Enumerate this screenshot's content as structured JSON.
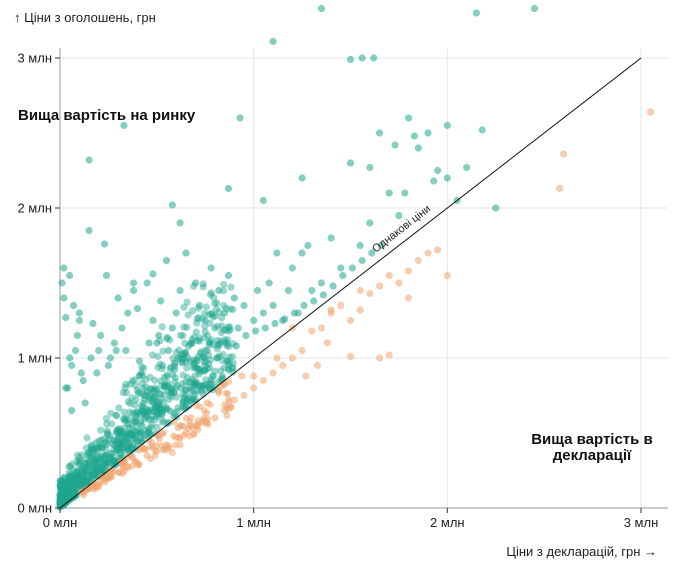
{
  "chart_data": {
    "type": "scatter",
    "xlabel": "Ціни з декларацій, грн →",
    "ylabel": "↑ Ціни з оголошень, грн",
    "xlim": [
      0,
      3000000
    ],
    "ylim": [
      0,
      3000000
    ],
    "xticks": [
      "0 млн",
      "1 млн",
      "2 млн",
      "3 млн"
    ],
    "yticks": [
      "0 млн",
      "1 млн",
      "2 млн",
      "3 млн"
    ],
    "grid": true,
    "diagonal_label": "Однакові ціни",
    "annotation_top": "Вища вартість на ринку",
    "annotation_bottom": [
      "Вища вартість в",
      "декларації"
    ],
    "colors": {
      "market_higher": "#1fa68f",
      "declaration_higher": "#f0a46f"
    },
    "series": [
      {
        "name": "Вища вартість на ринку",
        "note": "Representative subset of the dense point cloud",
        "x": [
          20000,
          30000,
          50000,
          40000,
          60000,
          70000,
          90000,
          100000,
          110000,
          130000,
          150000,
          170000,
          200000,
          230000,
          250000,
          280000,
          300000,
          320000,
          350000,
          380000,
          400000,
          420000,
          450000,
          480000,
          500000,
          520000,
          550000,
          580000,
          600000,
          620000,
          650000,
          680000,
          700000,
          720000,
          750000,
          780000,
          800000,
          820000,
          850000,
          870000,
          900000,
          920000,
          950000,
          1000000,
          1020000,
          1050000,
          1080000,
          1100000,
          1120000,
          1150000,
          1180000,
          1200000,
          1230000,
          1250000,
          1280000,
          1300000,
          1350000,
          1400000,
          1450000,
          1500000,
          1550000,
          1600000,
          1700000,
          1750000,
          1800000,
          1850000,
          1900000,
          1950000,
          2000000,
          2100000,
          2180000,
          2000000,
          1500000,
          1560000,
          1620000,
          1350000,
          1100000,
          930000,
          330000,
          150000,
          2150000,
          2450000,
          2250000,
          1650000,
          1730000,
          1780000,
          1830000,
          1930000,
          2050000,
          1600000,
          1250000,
          1050000,
          870000,
          620000,
          580000,
          480000,
          380000,
          240000,
          100000,
          50000,
          20000,
          10000,
          30000,
          60000,
          80000,
          120000,
          160000,
          190000,
          210000,
          260000,
          290000,
          340000,
          410000,
          460000,
          510000,
          560000,
          610000,
          660000,
          710000,
          760000,
          810000,
          860000,
          910000,
          960000,
          1010000,
          1060000,
          1110000,
          1160000,
          1210000,
          1260000,
          1310000,
          1360000,
          1410000,
          1460000,
          1510000,
          1560000,
          1610000,
          1660000
        ],
        "y": [
          1400000,
          1270000,
          1000000,
          800000,
          650000,
          1350000,
          1150000,
          1250000,
          900000,
          700000,
          2320000,
          1230000,
          1050000,
          1760000,
          950000,
          1100000,
          1400000,
          1200000,
          1300000,
          1450000,
          1330000,
          900000,
          1500000,
          1250000,
          1100000,
          1380000,
          1650000,
          1200000,
          1300000,
          1450000,
          1700000,
          1100000,
          1500000,
          1350000,
          1250000,
          1600000,
          1200000,
          1450000,
          1300000,
          1550000,
          1400000,
          1200000,
          1350000,
          1250000,
          1450000,
          1300000,
          1500000,
          1350000,
          1700000,
          1250000,
          1450000,
          1600000,
          1300000,
          1700000,
          1750000,
          1450000,
          1500000,
          1800000,
          1600000,
          2300000,
          1750000,
          1900000,
          2100000,
          1950000,
          2600000,
          2400000,
          2500000,
          2250000,
          2200000,
          2270000,
          2520000,
          2550000,
          2990000,
          3000000,
          3000000,
          3330000,
          3110000,
          2600000,
          2550000,
          1850000,
          3300000,
          3330000,
          2000000,
          2500000,
          2420000,
          2100000,
          2480000,
          2180000,
          2050000,
          2270000,
          2200000,
          2050000,
          2130000,
          1900000,
          2020000,
          1560000,
          1500000,
          1550000,
          1300000,
          1550000,
          1600000,
          1500000,
          800000,
          950000,
          1050000,
          850000,
          1000000,
          900000,
          1150000,
          1000000,
          1050000,
          1050000,
          980000,
          1100000,
          1150000,
          1050000,
          1000000,
          1000000,
          980000,
          1050000,
          1000000,
          1100000,
          1080000,
          1150000,
          1180000,
          1200000,
          1230000,
          1260000,
          1300000,
          1350000,
          1380000,
          1420000,
          1480000,
          1550000,
          1600000,
          1650000,
          1700000,
          1750000
        ]
      },
      {
        "name": "Вища вартість в декларації",
        "x": [
          2600000,
          2580000,
          3050000,
          2000000,
          1950000,
          1900000,
          1850000,
          1800000,
          1750000,
          1700000,
          1650000,
          1600000,
          1550000,
          1500000,
          1450000,
          1400000,
          1350000,
          1300000,
          1250000,
          1200000,
          1150000,
          1100000,
          1050000,
          1000000,
          950000,
          900000,
          850000,
          800000,
          750000,
          700000,
          650000,
          600000,
          550000,
          500000,
          450000,
          400000,
          350000,
          300000,
          250000,
          200000,
          150000,
          1700000,
          1380000,
          1500000,
          1330000,
          1650000,
          1200000,
          1000000,
          820000,
          620000,
          1550000,
          1800000,
          1400000,
          1270000,
          1120000,
          940000,
          760000,
          580000
        ],
        "y": [
          2360000,
          2130000,
          2640000,
          1550000,
          1720000,
          1700000,
          1650000,
          1400000,
          1500000,
          1020000,
          1480000,
          1430000,
          1320000,
          1010000,
          1350000,
          1300000,
          1200000,
          1180000,
          1050000,
          1000000,
          950000,
          900000,
          850000,
          800000,
          750000,
          720000,
          650000,
          600000,
          580000,
          550000,
          500000,
          470000,
          420000,
          380000,
          350000,
          300000,
          270000,
          240000,
          200000,
          160000,
          130000,
          1550000,
          1100000,
          1250000,
          950000,
          1000000,
          1200000,
          880000,
          780000,
          420000,
          1450000,
          1580000,
          1320000,
          880000,
          1000000,
          880000,
          700000,
          370000
        ]
      }
    ]
  }
}
